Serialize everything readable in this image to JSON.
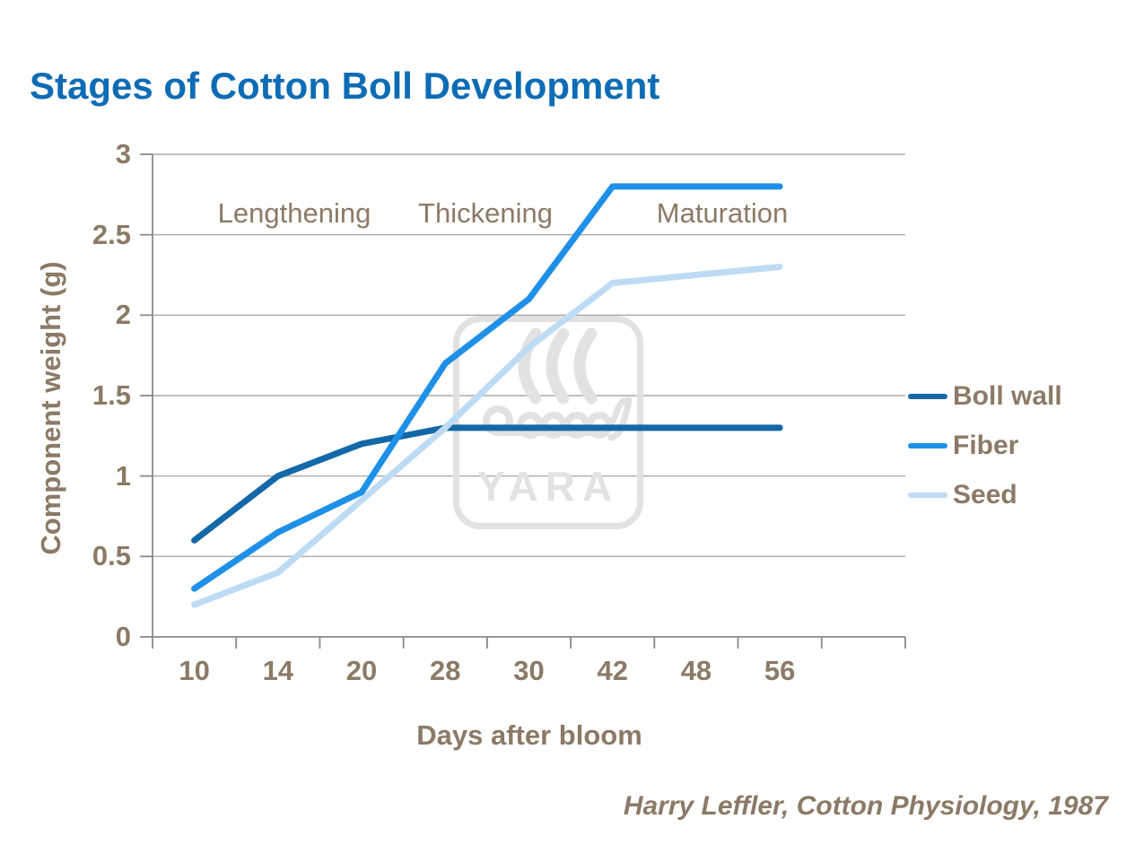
{
  "title": "Stages of Cotton Boll Development",
  "citation": "Harry Leffler, Cotton Physiology, 1987",
  "watermark": {
    "text": "YARA"
  },
  "colors": {
    "title": "#0D6CB5",
    "text_brown": "#8B7A66",
    "grid": "#ADAAA7",
    "axis": "#8A8A8A",
    "watermark": "#E2E2E2",
    "boll_wall": "#1268A8",
    "fiber": "#1E90E8",
    "seed": "#BDDBF4"
  },
  "chart_data": {
    "type": "line",
    "title": "Stages of Cotton Boll Development",
    "categories": [
      "10",
      "14",
      "20",
      "28",
      "30",
      "42",
      "48",
      "56"
    ],
    "series": [
      {
        "name": "Boll wall",
        "color": "#1268A8",
        "values": [
          0.6,
          1.0,
          1.2,
          1.3,
          1.3,
          1.3,
          1.3,
          1.3
        ]
      },
      {
        "name": "Fiber",
        "color": "#1E90E8",
        "values": [
          0.3,
          0.65,
          0.9,
          1.7,
          2.1,
          2.8,
          2.8,
          2.8
        ]
      },
      {
        "name": "Seed",
        "color": "#BDDBF4",
        "values": [
          0.2,
          0.4,
          0.85,
          1.3,
          1.8,
          2.2,
          2.25,
          2.3
        ]
      }
    ],
    "xlabel": "Days after bloom",
    "ylabel": "Component weight (g)",
    "ylim": [
      0,
      3
    ],
    "y_ticks": [
      0,
      0.5,
      1,
      1.5,
      2,
      2.5,
      3
    ],
    "y_tick_labels": [
      "0",
      "0.5",
      "1",
      "1.5",
      "2",
      "2.5",
      "3"
    ],
    "x_axis_slots": 9,
    "grid": true,
    "legend_position": "right",
    "annotations": [
      "Lengthening",
      "Thickening",
      "Maturation"
    ]
  }
}
